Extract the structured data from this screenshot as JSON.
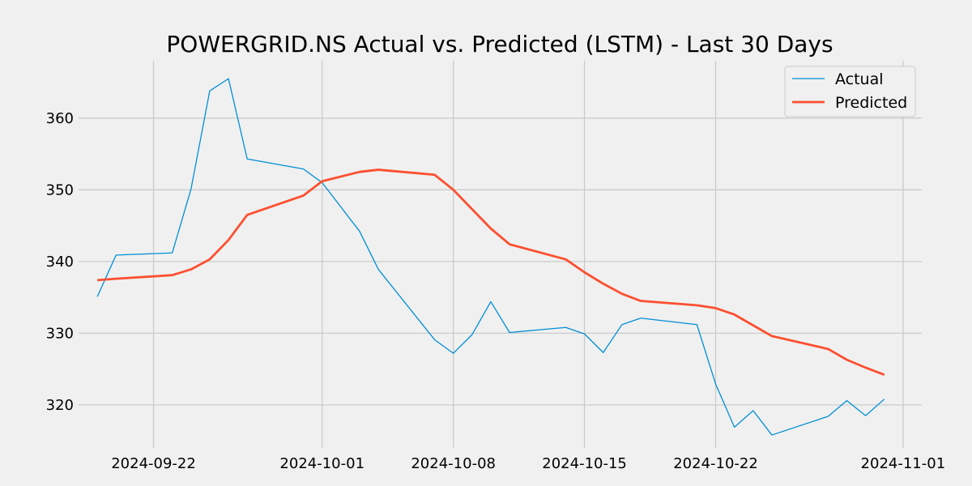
{
  "chart_data": {
    "type": "line",
    "title": "POWERGRID.NS Actual vs. Predicted (LSTM) - Last 30 Days",
    "xlabel": "",
    "ylabel": "",
    "x_axis_type": "date",
    "xlim": [
      "2024-09-18",
      "2024-11-02"
    ],
    "ylim": [
      314,
      368
    ],
    "x_ticks": [
      "2024-09-22",
      "2024-10-01",
      "2024-10-08",
      "2024-10-15",
      "2024-10-22",
      "2024-11-01"
    ],
    "y_ticks": [
      320,
      330,
      340,
      350,
      360
    ],
    "grid": true,
    "legend_position": "top-right",
    "series": [
      {
        "name": "Actual",
        "color": "#008fd5",
        "line_width": "thin",
        "points": [
          [
            "2024-09-19",
            335.1
          ],
          [
            "2024-09-20",
            340.9
          ],
          [
            "2024-09-23",
            341.2
          ],
          [
            "2024-09-24",
            350.1
          ],
          [
            "2024-09-25",
            363.8
          ],
          [
            "2024-09-26",
            365.5
          ],
          [
            "2024-09-27",
            354.3
          ],
          [
            "2024-09-30",
            352.9
          ],
          [
            "2024-10-01",
            351.0
          ],
          [
            "2024-10-03",
            344.2
          ],
          [
            "2024-10-04",
            338.9
          ],
          [
            "2024-10-07",
            329.1
          ],
          [
            "2024-10-08",
            327.2
          ],
          [
            "2024-10-09",
            329.8
          ],
          [
            "2024-10-10",
            334.4
          ],
          [
            "2024-10-11",
            330.1
          ],
          [
            "2024-10-14",
            330.8
          ],
          [
            "2024-10-15",
            329.9
          ],
          [
            "2024-10-16",
            327.3
          ],
          [
            "2024-10-17",
            331.2
          ],
          [
            "2024-10-18",
            332.1
          ],
          [
            "2024-10-21",
            331.2
          ],
          [
            "2024-10-22",
            322.9
          ],
          [
            "2024-10-23",
            316.9
          ],
          [
            "2024-10-24",
            319.2
          ],
          [
            "2024-10-25",
            315.8
          ],
          [
            "2024-10-28",
            318.4
          ],
          [
            "2024-10-29",
            320.6
          ],
          [
            "2024-10-30",
            318.5
          ],
          [
            "2024-10-31",
            320.8
          ]
        ]
      },
      {
        "name": "Predicted",
        "color": "#fc4f30",
        "line_width": "thick",
        "points": [
          [
            "2024-09-19",
            337.4
          ],
          [
            "2024-09-20",
            337.6
          ],
          [
            "2024-09-23",
            338.1
          ],
          [
            "2024-09-24",
            338.9
          ],
          [
            "2024-09-25",
            340.3
          ],
          [
            "2024-09-26",
            343.0
          ],
          [
            "2024-09-27",
            346.5
          ],
          [
            "2024-09-30",
            349.2
          ],
          [
            "2024-10-01",
            351.2
          ],
          [
            "2024-10-03",
            352.5
          ],
          [
            "2024-10-04",
            352.8
          ],
          [
            "2024-10-07",
            352.1
          ],
          [
            "2024-10-08",
            350.0
          ],
          [
            "2024-10-09",
            347.3
          ],
          [
            "2024-10-10",
            344.6
          ],
          [
            "2024-10-11",
            342.4
          ],
          [
            "2024-10-14",
            340.3
          ],
          [
            "2024-10-15",
            338.5
          ],
          [
            "2024-10-16",
            336.9
          ],
          [
            "2024-10-17",
            335.5
          ],
          [
            "2024-10-18",
            334.5
          ],
          [
            "2024-10-21",
            333.9
          ],
          [
            "2024-10-22",
            333.5
          ],
          [
            "2024-10-23",
            332.6
          ],
          [
            "2024-10-24",
            331.1
          ],
          [
            "2024-10-25",
            329.6
          ],
          [
            "2024-10-28",
            327.8
          ],
          [
            "2024-10-29",
            326.3
          ],
          [
            "2024-10-30",
            325.2
          ],
          [
            "2024-10-31",
            324.2
          ]
        ]
      }
    ]
  }
}
